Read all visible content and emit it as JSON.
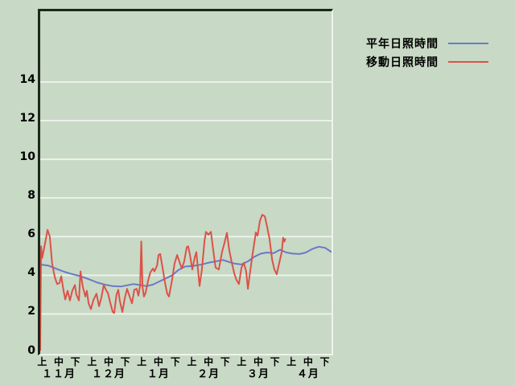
{
  "page": {
    "background": "#c8d9c5"
  },
  "legend": {
    "items": [
      {
        "label": "平年日照時間",
        "color": "#6b79c8"
      },
      {
        "label": "移動日照時間",
        "color": "#dc5248"
      }
    ]
  },
  "chart_data": {
    "type": "line",
    "title": "",
    "xlabel": "",
    "ylabel": "",
    "grid": "horizontal-only",
    "gridline_color": "#ecf3ea",
    "legend_position": "outside-top-right",
    "y_axis": {
      "ticks": [
        0,
        2,
        4,
        6,
        8,
        10,
        12,
        14
      ],
      "range": [
        0,
        17.7
      ]
    },
    "x_axis": {
      "period_labels": [
        {
          "label": "上",
          "pos": 0.015
        },
        {
          "label": "中",
          "pos": 0.072
        },
        {
          "label": "下",
          "pos": 0.129
        },
        {
          "label": "上",
          "pos": 0.186
        },
        {
          "label": "中",
          "pos": 0.243
        },
        {
          "label": "下",
          "pos": 0.3
        },
        {
          "label": "上",
          "pos": 0.357
        },
        {
          "label": "中",
          "pos": 0.414
        },
        {
          "label": "下",
          "pos": 0.472
        },
        {
          "label": "上",
          "pos": 0.529
        },
        {
          "label": "中",
          "pos": 0.586
        },
        {
          "label": "下",
          "pos": 0.643
        },
        {
          "label": "上",
          "pos": 0.7
        },
        {
          "label": "中",
          "pos": 0.757
        },
        {
          "label": "下",
          "pos": 0.814
        },
        {
          "label": "上",
          "pos": 0.871
        },
        {
          "label": "中",
          "pos": 0.928
        },
        {
          "label": "下",
          "pos": 0.985
        }
      ],
      "month_labels": [
        {
          "label": "１１月",
          "pos": 0.072
        },
        {
          "label": "１２月",
          "pos": 0.243
        },
        {
          "label": "１月",
          "pos": 0.414
        },
        {
          "label": "２月",
          "pos": 0.586
        },
        {
          "label": "３月",
          "pos": 0.757
        },
        {
          "label": "４月",
          "pos": 0.928
        }
      ]
    },
    "series": [
      {
        "name": "平年日照時間",
        "color": "#6b79c8",
        "points": [
          [
            0.003,
            4.55
          ],
          [
            0.028,
            4.5
          ],
          [
            0.055,
            4.34
          ],
          [
            0.083,
            4.18
          ],
          [
            0.11,
            4.06
          ],
          [
            0.138,
            3.95
          ],
          [
            0.166,
            3.8
          ],
          [
            0.193,
            3.64
          ],
          [
            0.221,
            3.52
          ],
          [
            0.249,
            3.44
          ],
          [
            0.276,
            3.42
          ],
          [
            0.298,
            3.48
          ],
          [
            0.32,
            3.55
          ],
          [
            0.343,
            3.5
          ],
          [
            0.365,
            3.44
          ],
          [
            0.387,
            3.52
          ],
          [
            0.409,
            3.68
          ],
          [
            0.431,
            3.84
          ],
          [
            0.453,
            4.0
          ],
          [
            0.475,
            4.28
          ],
          [
            0.497,
            4.45
          ],
          [
            0.525,
            4.49
          ],
          [
            0.552,
            4.55
          ],
          [
            0.58,
            4.66
          ],
          [
            0.608,
            4.74
          ],
          [
            0.627,
            4.79
          ],
          [
            0.646,
            4.7
          ],
          [
            0.669,
            4.6
          ],
          [
            0.691,
            4.56
          ],
          [
            0.713,
            4.72
          ],
          [
            0.735,
            4.96
          ],
          [
            0.757,
            5.12
          ],
          [
            0.779,
            5.18
          ],
          [
            0.801,
            5.14
          ],
          [
            0.823,
            5.32
          ],
          [
            0.845,
            5.18
          ],
          [
            0.867,
            5.12
          ],
          [
            0.89,
            5.1
          ],
          [
            0.912,
            5.18
          ],
          [
            0.934,
            5.36
          ],
          [
            0.956,
            5.48
          ],
          [
            0.978,
            5.42
          ],
          [
            1.0,
            5.2
          ]
        ]
      },
      {
        "name": "移動日照時間",
        "color": "#dc5248",
        "points": [
          [
            0.0,
            0.1
          ],
          [
            0.003,
            5.5
          ],
          [
            0.007,
            4.9
          ],
          [
            0.017,
            5.7
          ],
          [
            0.025,
            6.35
          ],
          [
            0.033,
            6.0
          ],
          [
            0.041,
            4.6
          ],
          [
            0.05,
            3.9
          ],
          [
            0.058,
            3.55
          ],
          [
            0.066,
            3.6
          ],
          [
            0.072,
            3.95
          ],
          [
            0.08,
            3.2
          ],
          [
            0.086,
            2.75
          ],
          [
            0.094,
            3.2
          ],
          [
            0.102,
            2.7
          ],
          [
            0.11,
            3.2
          ],
          [
            0.119,
            3.5
          ],
          [
            0.124,
            3.0
          ],
          [
            0.133,
            2.7
          ],
          [
            0.138,
            4.2
          ],
          [
            0.146,
            3.4
          ],
          [
            0.155,
            2.9
          ],
          [
            0.16,
            3.2
          ],
          [
            0.166,
            2.55
          ],
          [
            0.174,
            2.25
          ],
          [
            0.182,
            2.7
          ],
          [
            0.193,
            3.05
          ],
          [
            0.202,
            2.4
          ],
          [
            0.21,
            2.85
          ],
          [
            0.218,
            3.5
          ],
          [
            0.227,
            3.2
          ],
          [
            0.232,
            3.1
          ],
          [
            0.24,
            2.6
          ],
          [
            0.249,
            2.1
          ],
          [
            0.254,
            2.05
          ],
          [
            0.262,
            3.0
          ],
          [
            0.268,
            3.25
          ],
          [
            0.273,
            2.7
          ],
          [
            0.282,
            2.1
          ],
          [
            0.29,
            2.8
          ],
          [
            0.298,
            3.3
          ],
          [
            0.307,
            2.9
          ],
          [
            0.315,
            2.55
          ],
          [
            0.323,
            3.25
          ],
          [
            0.331,
            3.3
          ],
          [
            0.337,
            2.95
          ],
          [
            0.343,
            3.5
          ],
          [
            0.347,
            5.75
          ],
          [
            0.351,
            3.4
          ],
          [
            0.356,
            2.9
          ],
          [
            0.362,
            3.1
          ],
          [
            0.37,
            3.7
          ],
          [
            0.378,
            4.15
          ],
          [
            0.387,
            4.35
          ],
          [
            0.392,
            4.2
          ],
          [
            0.401,
            4.5
          ],
          [
            0.406,
            5.05
          ],
          [
            0.412,
            5.1
          ],
          [
            0.42,
            4.4
          ],
          [
            0.428,
            3.65
          ],
          [
            0.436,
            3.05
          ],
          [
            0.442,
            2.9
          ],
          [
            0.453,
            3.8
          ],
          [
            0.461,
            4.6
          ],
          [
            0.47,
            5.05
          ],
          [
            0.478,
            4.7
          ],
          [
            0.486,
            4.35
          ],
          [
            0.494,
            4.7
          ],
          [
            0.503,
            5.45
          ],
          [
            0.508,
            5.5
          ],
          [
            0.514,
            5.05
          ],
          [
            0.522,
            4.3
          ],
          [
            0.53,
            4.9
          ],
          [
            0.536,
            5.2
          ],
          [
            0.541,
            4.4
          ],
          [
            0.547,
            3.45
          ],
          [
            0.555,
            4.3
          ],
          [
            0.564,
            5.8
          ],
          [
            0.569,
            6.25
          ],
          [
            0.577,
            6.1
          ],
          [
            0.586,
            6.25
          ],
          [
            0.594,
            5.3
          ],
          [
            0.602,
            4.4
          ],
          [
            0.613,
            4.3
          ],
          [
            0.624,
            5.2
          ],
          [
            0.633,
            5.7
          ],
          [
            0.641,
            6.2
          ],
          [
            0.649,
            5.3
          ],
          [
            0.657,
            4.7
          ],
          [
            0.666,
            4.1
          ],
          [
            0.674,
            3.75
          ],
          [
            0.682,
            3.55
          ],
          [
            0.691,
            4.4
          ],
          [
            0.699,
            4.65
          ],
          [
            0.707,
            4.2
          ],
          [
            0.713,
            3.3
          ],
          [
            0.718,
            3.9
          ],
          [
            0.727,
            4.9
          ],
          [
            0.735,
            5.7
          ],
          [
            0.74,
            6.22
          ],
          [
            0.746,
            6.05
          ],
          [
            0.754,
            6.8
          ],
          [
            0.762,
            7.13
          ],
          [
            0.771,
            7.05
          ],
          [
            0.779,
            6.5
          ],
          [
            0.787,
            5.9
          ],
          [
            0.796,
            4.8
          ],
          [
            0.804,
            4.3
          ],
          [
            0.812,
            4.05
          ],
          [
            0.82,
            4.6
          ],
          [
            0.829,
            5.2
          ],
          [
            0.834,
            5.95
          ],
          [
            0.838,
            5.74
          ],
          [
            0.842,
            5.9
          ]
        ]
      }
    ]
  }
}
